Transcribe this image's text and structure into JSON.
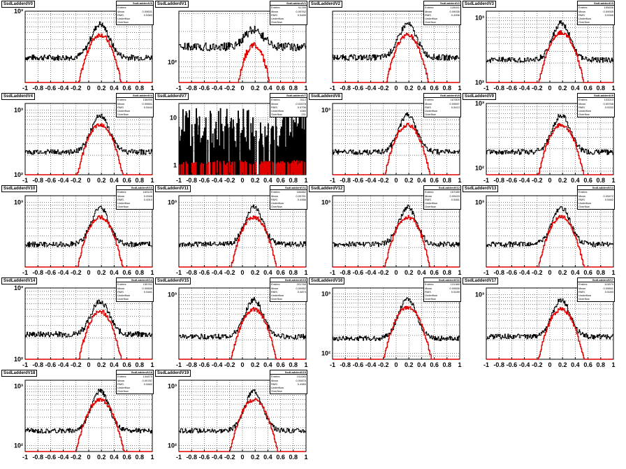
{
  "colors": {
    "black_hist": "#000000",
    "red_hist": "#e00000",
    "grid": "#000000",
    "background": "#ffffff"
  },
  "stat_labels": [
    "Entries",
    "Mean",
    "RMS",
    "Underflow",
    "Overflow"
  ],
  "pads": [
    {
      "title": "SsdLadderdV0",
      "stats": [
        "SsdLadderdV0",
        "",
        "0.09631",
        "0.5383",
        "",
        ""
      ],
      "log": [
        2,
        3
      ],
      "ytick_labels": [
        "10³"
      ]
    },
    {
      "title": "SsdLadderdV1",
      "stats": [
        "SsdLadderdV1",
        "91789",
        "0.09762",
        "0.5489",
        "",
        ""
      ],
      "log": [
        1.8,
        2.5
      ],
      "ytick_labels": [
        "10²"
      ]
    },
    {
      "title": "SsdLadderdV2",
      "stats": [
        "SsdLadderdV2",
        "128451",
        "0.09035",
        "0.4996",
        "",
        ""
      ],
      "log": [
        2,
        3
      ],
      "ytick_labels": []
    },
    {
      "title": "SsdLadderdV3",
      "stats": [
        "SsdLadderdV3",
        "155836",
        "0.09935",
        "0.5346",
        "",
        ""
      ],
      "log": [
        2,
        3.1
      ],
      "ytick_labels": [
        "10³",
        "10²"
      ]
    },
    {
      "title": "SsdLadderdV4",
      "stats": [
        "SsdLadderdV4",
        "156995",
        "0.09651",
        "0.5444",
        "",
        ""
      ],
      "log": [
        2,
        3.1
      ],
      "ytick_labels": [
        "10³",
        "10²"
      ]
    },
    {
      "title": "SsdLadderdV7",
      "stats": [
        "SsdLadderdV7",
        "3112",
        "-0.02678",
        "0.5796",
        "1080",
        "231"
      ],
      "log": [
        -0.2,
        1.3
      ],
      "ytick_labels": [
        "10",
        "1"
      ]
    },
    {
      "title": "SsdLadderdV8",
      "stats": [
        "SsdLadderdV8",
        "167809",
        "0.09697",
        "0.5413",
        "",
        ""
      ],
      "log": [
        2,
        3.1
      ],
      "ytick_labels": [
        "10³"
      ]
    },
    {
      "title": "SsdLadderdV9",
      "stats": [
        "SsdLadderdV9",
        "103213",
        "0.09768",
        "0.5333",
        "",
        ""
      ],
      "log": [
        1.9,
        3.0
      ],
      "ytick_labels": [
        "10³",
        "10²"
      ]
    },
    {
      "title": "SsdLadderdV10",
      "stats": [
        "SsdLadderdV10",
        "163120",
        "0.0946",
        "0.4913",
        "",
        ""
      ],
      "log": [
        2,
        3.1
      ],
      "ytick_labels": [
        "10³"
      ]
    },
    {
      "title": "SsdLadderdV11",
      "stats": [
        "SsdLadderdV11",
        "184882",
        "0.09761",
        "0.4986",
        "",
        ""
      ],
      "log": [
        2,
        3.1
      ],
      "ytick_labels": [
        "10³"
      ]
    },
    {
      "title": "SsdLadderdV12",
      "stats": [
        "SsdLadderdV12",
        "157089",
        "0.09433",
        "0.5481",
        "",
        ""
      ],
      "log": [
        2,
        3.1
      ],
      "ytick_labels": [
        "10³"
      ]
    },
    {
      "title": "SsdLadderdV13",
      "stats": [
        "SsdLadderdV13",
        "",
        "0.09472",
        "0.5482",
        "",
        ""
      ],
      "log": [
        2,
        3.1
      ],
      "ytick_labels": [
        "10³"
      ]
    },
    {
      "title": "SsdLadderdV14",
      "stats": [
        "SsdLadderdV14",
        "155761",
        "0.09839",
        "0.5481",
        "",
        ""
      ],
      "log": [
        2,
        3.0
      ],
      "ytick_labels": [
        "10³",
        "10²"
      ]
    },
    {
      "title": "SsdLadderdV15",
      "stats": [
        "SsdLadderdV15",
        "201785",
        "0.09952",
        "0.4873",
        "",
        ""
      ],
      "log": [
        2,
        3.1
      ],
      "ytick_labels": [
        "10³"
      ]
    },
    {
      "title": "SsdLadderdV16",
      "stats": [
        "SsdLadderdV16",
        "131385",
        "0.09835",
        "0.5185",
        "",
        ""
      ],
      "log": [
        1.9,
        3.1
      ],
      "ytick_labels": [
        "10³",
        "10²"
      ]
    },
    {
      "title": "SsdLadderdV17",
      "stats": [
        "SsdLadderdV17",
        "113879",
        "0.09841",
        "0.5283",
        "",
        ""
      ],
      "log": [
        2,
        3.1
      ],
      "ytick_labels": [
        "10³"
      ]
    },
    {
      "title": "SsdLadderdV18",
      "stats": [
        "SsdLadderdV18",
        "134875",
        "0.09787",
        "0.5482",
        "",
        ""
      ],
      "log": [
        1.9,
        3.1
      ],
      "ytick_labels": [
        "10³",
        "10²"
      ]
    },
    {
      "title": "SsdLadderdV19",
      "stats": [
        "SsdLadderdV19",
        "151083",
        "0.09876",
        "0.4983",
        "",
        ""
      ],
      "log": [
        1.9,
        3.1
      ],
      "ytick_labels": [
        "10³",
        "10²"
      ]
    }
  ],
  "chart_data": {
    "type": "line",
    "xlim": [
      -1,
      1
    ],
    "xtick_labels": [
      "-1",
      "-0.8",
      "-0.6",
      "-0.4",
      "-0.2",
      "0",
      "0.2",
      "0.4",
      "0.6",
      "0.8",
      "1"
    ],
    "grid": true,
    "yscale": "log"
  }
}
